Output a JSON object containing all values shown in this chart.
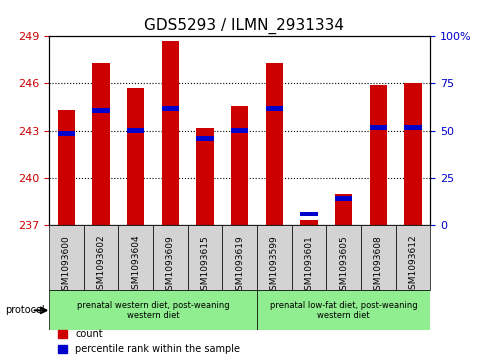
{
  "title": "GDS5293 / ILMN_2931334",
  "samples": [
    "GSM1093600",
    "GSM1093602",
    "GSM1093604",
    "GSM1093609",
    "GSM1093615",
    "GSM1093619",
    "GSM1093599",
    "GSM1093601",
    "GSM1093605",
    "GSM1093608",
    "GSM1093612"
  ],
  "bar_values": [
    244.3,
    247.3,
    245.7,
    248.7,
    243.2,
    244.6,
    247.3,
    237.3,
    239.0,
    245.9,
    246.0
  ],
  "blue_values": [
    242.8,
    244.3,
    243.0,
    244.4,
    242.5,
    243.0,
    244.4,
    237.7,
    238.7,
    243.2,
    243.2
  ],
  "y_min": 237,
  "y_max": 249,
  "y_ticks": [
    237,
    240,
    243,
    246,
    249
  ],
  "right_y_ticks": [
    0,
    25,
    50,
    75,
    100
  ],
  "right_y_labels": [
    "0",
    "25",
    "50",
    "75",
    "100%"
  ],
  "bar_color": "#cc0000",
  "blue_color": "#0000cc",
  "grid_color": "#000000",
  "title_fontsize": 11,
  "group1_label": "prenatal western diet, post-weaning\nwestern diet",
  "group2_label": "prenatal low-fat diet, post-weaning\nwestern diet",
  "group1_indices": [
    0,
    1,
    2,
    3,
    4,
    5
  ],
  "group2_indices": [
    6,
    7,
    8,
    9,
    10
  ],
  "protocol_label": "protocol",
  "legend_count": "count",
  "legend_percentile": "percentile rank within the sample",
  "axis_label_color_left": "#cc0000",
  "axis_label_color_right": "#0000cc",
  "background_plot": "#ffffff",
  "background_tick": "#d3d3d3",
  "background_group1": "#90ee90",
  "background_group2": "#90ee90"
}
